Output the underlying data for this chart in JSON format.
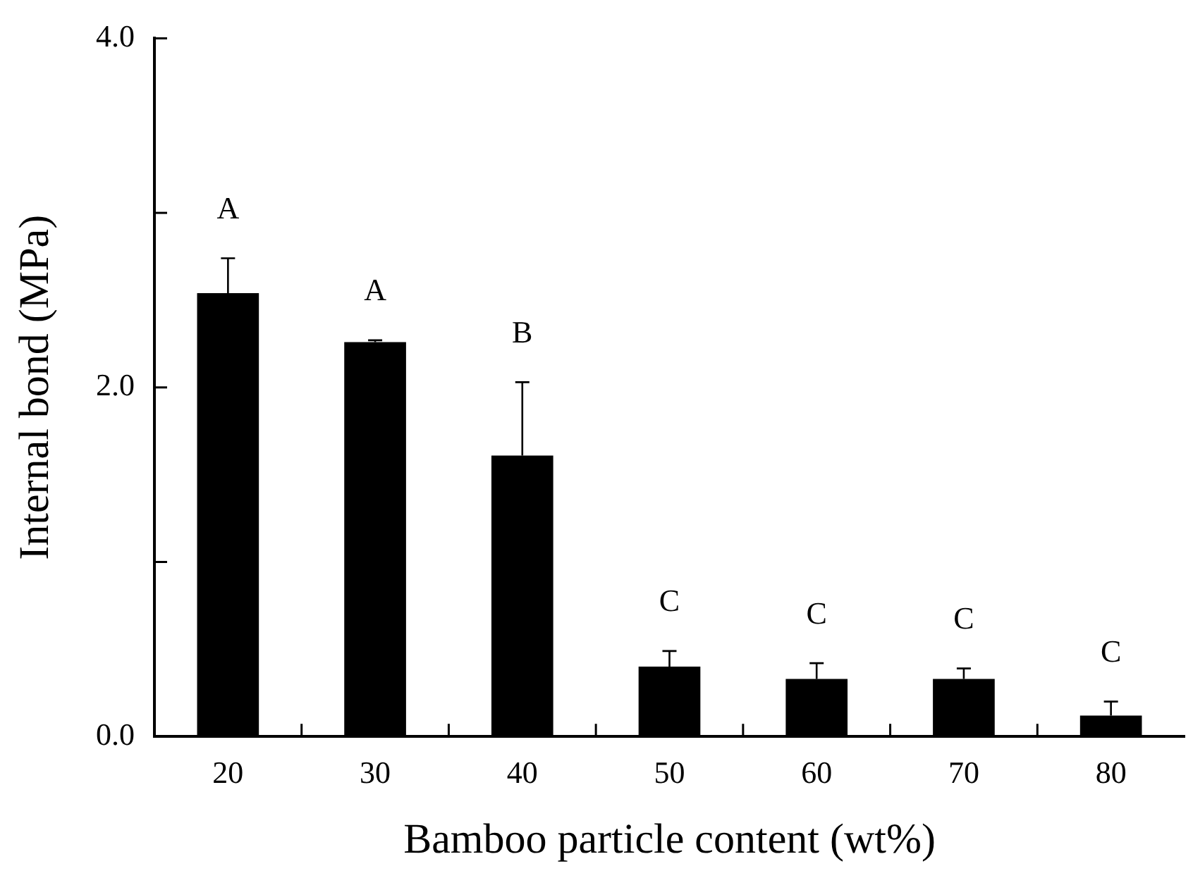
{
  "chart_data": {
    "type": "bar",
    "xlabel": "Bamboo particle content (wt%)",
    "ylabel": "Internal bond (MPa)",
    "categories": [
      "20",
      "30",
      "40",
      "50",
      "60",
      "70",
      "80"
    ],
    "values": [
      2.54,
      2.26,
      1.61,
      0.4,
      0.33,
      0.33,
      0.12
    ],
    "errors": [
      [
        2.54,
        2.74
      ],
      [
        2.26,
        2.27
      ],
      [
        1.61,
        2.03
      ],
      [
        0.4,
        0.49
      ],
      [
        0.33,
        0.42
      ],
      [
        0.33,
        0.39
      ],
      [
        0.12,
        0.2
      ]
    ],
    "color": "#000000",
    "ylim": [
      0,
      4
    ],
    "yticks": [
      {
        "value": 0,
        "label": "0.0"
      },
      {
        "value": 1,
        "label": null
      },
      {
        "value": 2,
        "label": "2.0"
      },
      {
        "value": 3,
        "label": null
      },
      {
        "value": 4,
        "label": "4.0"
      }
    ],
    "grid": false,
    "legend": false,
    "annotations": [
      "A",
      "A",
      "B",
      "C",
      "C",
      "C",
      "C"
    ]
  }
}
